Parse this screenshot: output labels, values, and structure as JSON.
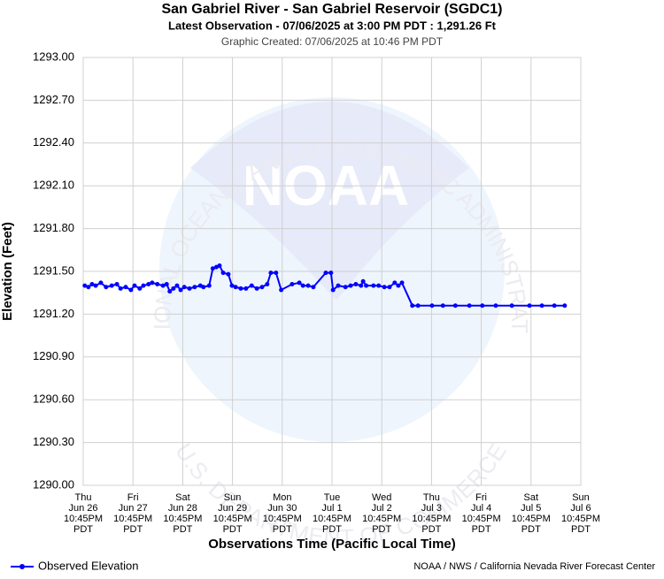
{
  "chart_data": {
    "type": "line",
    "title": "San Gabriel River - San Gabriel Reservoir (SGDC1)",
    "subtitle": "Latest Observation - 07/06/2025 at 3:00 PM PDT : 1,291.26 Ft",
    "note": "Graphic Created: 07/06/2025 at 10:46 PM PDT",
    "y_label": "Elevation (Feet)",
    "x_label": "Observations Time (Pacific Local Time)",
    "credit": "NOAA / NWS / California Nevada River Forecast Center",
    "watermark": {
      "logo": "NOAA",
      "top_arc": "NATIONAL OCEANIC AND ATMOSPHERIC ADMINISTRATION",
      "bottom_arc": "U.S. DEPARTMENT OF COMMERCE"
    },
    "grid": true,
    "legend": "bottom-left",
    "xlim": [
      "2025-06-26T22:45",
      "2025-07-06T22:45"
    ],
    "xticks": [
      {
        "value": "2025-06-26T22:45",
        "label": [
          "Thu",
          "Jun 26",
          "10:45PM",
          "PDT"
        ]
      },
      {
        "value": "2025-06-27T22:45",
        "label": [
          "Fri",
          "Jun 27",
          "10:45PM",
          "PDT"
        ]
      },
      {
        "value": "2025-06-28T22:45",
        "label": [
          "Sat",
          "Jun 28",
          "10:45PM",
          "PDT"
        ]
      },
      {
        "value": "2025-06-29T22:45",
        "label": [
          "Sun",
          "Jun 29",
          "10:45PM",
          "PDT"
        ]
      },
      {
        "value": "2025-06-30T22:45",
        "label": [
          "Mon",
          "Jun 30",
          "10:45PM",
          "PDT"
        ]
      },
      {
        "value": "2025-07-01T22:45",
        "label": [
          "Tue",
          "Jul 1",
          "10:45PM",
          "PDT"
        ]
      },
      {
        "value": "2025-07-02T22:45",
        "label": [
          "Wed",
          "Jul 2",
          "10:45PM",
          "PDT"
        ]
      },
      {
        "value": "2025-07-03T22:45",
        "label": [
          "Thu",
          "Jul 3",
          "10:45PM",
          "PDT"
        ]
      },
      {
        "value": "2025-07-04T22:45",
        "label": [
          "Fri",
          "Jul 4",
          "10:45PM",
          "PDT"
        ]
      },
      {
        "value": "2025-07-05T22:45",
        "label": [
          "Sat",
          "Jul 5",
          "10:45PM",
          "PDT"
        ]
      },
      {
        "value": "2025-07-06T22:45",
        "label": [
          "Sun",
          "Jul 6",
          "10:45PM",
          "PDT"
        ]
      }
    ],
    "ylim": [
      1290,
      1293
    ],
    "yticks": [
      {
        "value": 1290,
        "label": "1290.00"
      },
      {
        "value": 1290.3,
        "label": "1290.30"
      },
      {
        "value": 1290.6,
        "label": "1290.60"
      },
      {
        "value": 1290.9,
        "label": "1290.90"
      },
      {
        "value": 1291.2,
        "label": "1291.20"
      },
      {
        "value": 1291.5,
        "label": "1291.50"
      },
      {
        "value": 1291.8,
        "label": "1291.80"
      },
      {
        "value": 1292.1,
        "label": "1292.10"
      },
      {
        "value": 1292.4,
        "label": "1292.40"
      },
      {
        "value": 1292.7,
        "label": "1292.70"
      },
      {
        "value": 1293,
        "label": "1293.00"
      }
    ],
    "x": [
      "2025-06-26T23:30",
      "2025-06-27T01:15",
      "2025-06-27T03:00",
      "2025-06-27T04:45",
      "2025-06-27T07:15",
      "2025-06-27T09:45",
      "2025-06-27T12:30",
      "2025-06-27T15:00",
      "2025-06-27T16:45",
      "2025-06-27T19:15",
      "2025-06-27T21:45",
      "2025-06-27T23:30",
      "2025-06-28T02:00",
      "2025-06-28T03:45",
      "2025-06-28T06:15",
      "2025-06-28T08:00",
      "2025-06-28T10:30",
      "2025-06-28T13:15",
      "2025-06-28T15:00",
      "2025-06-28T16:30",
      "2025-06-28T18:15",
      "2025-06-28T20:00",
      "2025-06-28T21:45",
      "2025-06-28T23:30",
      "2025-06-29T02:00",
      "2025-06-29T04:30",
      "2025-06-29T07:15",
      "2025-06-29T08:45",
      "2025-06-29T11:30",
      "2025-06-29T13:15",
      "2025-06-29T15:00",
      "2025-06-29T16:30",
      "2025-06-29T18:15",
      "2025-06-29T20:45",
      "2025-06-29T22:30",
      "2025-06-30T00:15",
      "2025-06-30T02:45",
      "2025-06-30T05:15",
      "2025-06-30T08:00",
      "2025-06-30T10:30",
      "2025-06-30T13:00",
      "2025-06-30T15:30",
      "2025-06-30T17:15",
      "2025-06-30T19:45",
      "2025-06-30T22:15",
      "2025-07-01T03:30",
      "2025-07-01T07:00",
      "2025-07-01T08:45",
      "2025-07-01T11:15",
      "2025-07-01T13:45",
      "2025-07-01T19:45",
      "2025-07-01T22:15",
      "2025-07-01T23:15",
      "2025-07-02T01:45",
      "2025-07-02T05:15",
      "2025-07-02T07:45",
      "2025-07-02T10:15",
      "2025-07-02T12:45",
      "2025-07-02T13:45",
      "2025-07-02T15:15",
      "2025-07-02T18:45",
      "2025-07-02T21:15",
      "2025-07-03T00:00",
      "2025-07-03T02:30",
      "2025-07-03T05:00",
      "2025-07-03T06:45",
      "2025-07-03T08:30",
      "2025-07-03T13:30",
      "2025-07-03T16:15",
      "2025-07-03T23:00",
      "2025-07-04T04:15",
      "2025-07-04T10:15",
      "2025-07-04T17:00",
      "2025-07-04T23:15",
      "2025-07-05T05:45",
      "2025-07-05T13:30",
      "2025-07-05T22:00",
      "2025-07-06T04:00",
      "2025-07-06T10:00",
      "2025-07-06T15:00"
    ],
    "series": [
      {
        "name": "Observed Elevation",
        "color": "#0000ff",
        "values": [
          1291.4,
          1291.39,
          1291.41,
          1291.4,
          1291.42,
          1291.39,
          1291.4,
          1291.41,
          1291.38,
          1291.39,
          1291.37,
          1291.4,
          1291.38,
          1291.4,
          1291.41,
          1291.42,
          1291.41,
          1291.4,
          1291.41,
          1291.36,
          1291.38,
          1291.4,
          1291.37,
          1291.39,
          1291.38,
          1291.39,
          1291.4,
          1291.39,
          1291.4,
          1291.52,
          1291.53,
          1291.54,
          1291.49,
          1291.48,
          1291.4,
          1291.39,
          1291.38,
          1291.38,
          1291.4,
          1291.38,
          1291.39,
          1291.41,
          1291.49,
          1291.49,
          1291.37,
          1291.41,
          1291.42,
          1291.4,
          1291.4,
          1291.39,
          1291.49,
          1291.49,
          1291.37,
          1291.4,
          1291.39,
          1291.4,
          1291.41,
          1291.4,
          1291.43,
          1291.4,
          1291.4,
          1291.4,
          1291.39,
          1291.39,
          1291.42,
          1291.4,
          1291.42,
          1291.26,
          1291.26,
          1291.26,
          1291.26,
          1291.26,
          1291.26,
          1291.26,
          1291.26,
          1291.26,
          1291.26,
          1291.26,
          1291.26,
          1291.26
        ]
      }
    ]
  }
}
